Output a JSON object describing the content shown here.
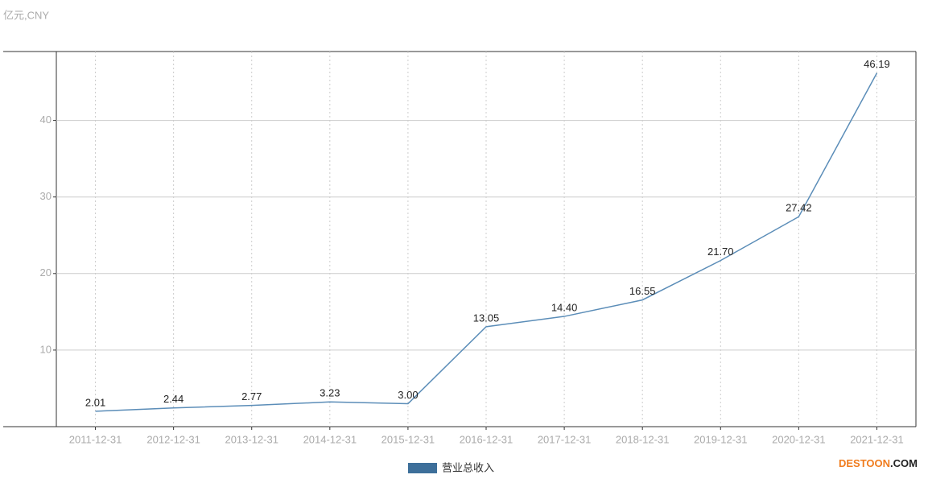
{
  "chart_data": {
    "type": "line",
    "unit_label": "亿元,CNY",
    "categories": [
      "2011-12-31",
      "2012-12-31",
      "2013-12-31",
      "2014-12-31",
      "2015-12-31",
      "2016-12-31",
      "2017-12-31",
      "2018-12-31",
      "2019-12-31",
      "2020-12-31",
      "2021-12-31"
    ],
    "series": [
      {
        "name": "营业总收入",
        "color": "#5b8db8",
        "legend_color": "#3d6f9a",
        "values": [
          2.01,
          2.44,
          2.77,
          3.23,
          3.0,
          13.05,
          14.4,
          16.55,
          21.7,
          27.42,
          46.19
        ],
        "value_labels": [
          "2.01",
          "2.44",
          "2.77",
          "3.23",
          "3.00",
          "13.05",
          "14.40",
          "16.55",
          "21.70",
          "27.42",
          "46.19"
        ]
      }
    ],
    "ylim": [
      0,
      49
    ],
    "yticks": [
      10,
      20,
      30,
      40
    ],
    "grid": true,
    "watermark": {
      "brand": "DESTOON",
      "suffix": ".COM"
    }
  }
}
